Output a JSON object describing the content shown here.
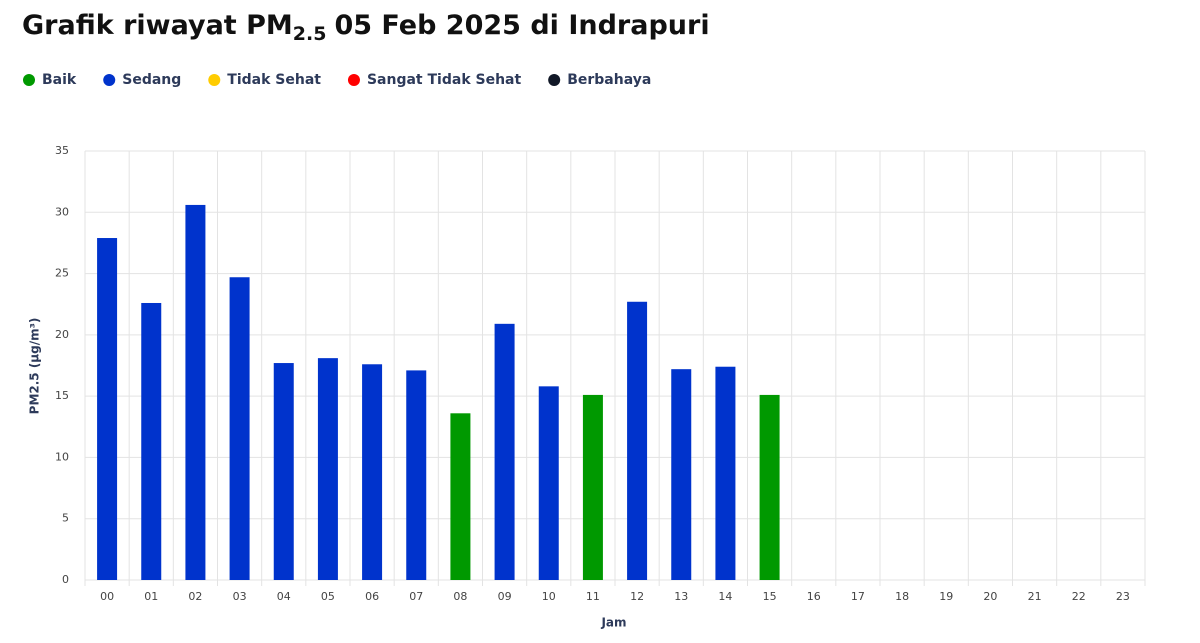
{
  "chart_data": {
    "type": "bar",
    "title": {
      "text_before": "Grafik riwayat PM",
      "subscript": "2.5",
      "text_after": "05 Feb 2025 di Indrapuri"
    },
    "legend": [
      {
        "name": "Baik",
        "color": "#009900"
      },
      {
        "name": "Sedang",
        "color": "#0033cc"
      },
      {
        "name": "Tidak Sehat",
        "color": "#ffcc00"
      },
      {
        "name": "Sangat Tidak Sehat",
        "color": "#ff0000"
      },
      {
        "name": "Berbahaya",
        "color": "#111827"
      }
    ],
    "x_label": "Jam",
    "y_label": "PM2.5 (µg/m³)",
    "categories": [
      "00",
      "01",
      "02",
      "03",
      "04",
      "05",
      "06",
      "07",
      "08",
      "09",
      "10",
      "11",
      "12",
      "13",
      "14",
      "15",
      "16",
      "17",
      "18",
      "19",
      "20",
      "21",
      "22",
      "23"
    ],
    "values": [
      27.9,
      22.6,
      30.6,
      24.7,
      17.7,
      18.1,
      17.6,
      17.1,
      13.6,
      20.9,
      15.8,
      15.1,
      22.7,
      17.2,
      17.4,
      15.1,
      null,
      null,
      null,
      null,
      null,
      null,
      null,
      null
    ],
    "colors": [
      "#0033cc",
      "#0033cc",
      "#0033cc",
      "#0033cc",
      "#0033cc",
      "#0033cc",
      "#0033cc",
      "#0033cc",
      "#009900",
      "#0033cc",
      "#0033cc",
      "#009900",
      "#0033cc",
      "#0033cc",
      "#0033cc",
      "#009900",
      null,
      null,
      null,
      null,
      null,
      null,
      null,
      null
    ],
    "ylim": [
      0,
      35
    ],
    "yticks": [
      0,
      5,
      10,
      15,
      20,
      25,
      30,
      35
    ],
    "grid": true
  }
}
